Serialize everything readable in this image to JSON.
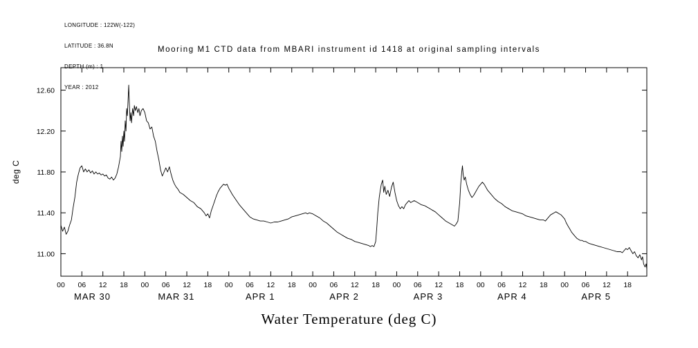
{
  "meta": {
    "lines": [
      "LONGITUDE : 122W(-122)",
      "LATITUDE : 36.8N",
      "DEPTH (m) : 1",
      "YEAR : 2012"
    ]
  },
  "title": "Mooring M1 CTD data from MBARI instrument id 1418 at original sampling intervals",
  "chart_data": {
    "type": "line",
    "title": "Mooring M1 CTD data from MBARI instrument id 1418 at original sampling intervals",
    "xlabel": "Water Temperature (deg C)",
    "ylabel": "deg C",
    "ylim": [
      10.78,
      12.82
    ],
    "xlim_hours": [
      0,
      167.5
    ],
    "yticks": [
      11.0,
      11.4,
      11.8,
      12.2,
      12.6
    ],
    "ytick_labels": [
      "11.00",
      "11.40",
      "11.80",
      "12.20",
      "12.60"
    ],
    "hour_tick_interval": 6,
    "hour_tick_labels": [
      "00",
      "06",
      "12",
      "18"
    ],
    "day_labels": [
      "MAR 30",
      "MAR 31",
      "APR 1",
      "APR 2",
      "APR 3",
      "APR 4",
      "APR 5"
    ],
    "grid": false,
    "legend": "none",
    "line_color": "#000000",
    "series_name": "water-temperature",
    "x_hours": [
      0,
      0.5,
      1,
      1.5,
      2,
      2.5,
      3,
      3.5,
      4,
      4.5,
      5,
      5.5,
      6,
      6.5,
      7,
      7.5,
      8,
      8.5,
      9,
      9.5,
      10,
      10.5,
      11,
      11.5,
      12,
      12.5,
      13,
      13.5,
      14,
      14.5,
      15,
      15.5,
      16,
      16.5,
      17,
      17.2,
      17.4,
      17.6,
      17.8,
      18,
      18.2,
      18.4,
      18.6,
      18.8,
      19,
      19.2,
      19.4,
      19.6,
      19.8,
      20,
      20.2,
      20.5,
      20.8,
      21,
      21.3,
      21.6,
      22,
      22.3,
      22.6,
      23,
      23.5,
      24,
      24.5,
      25,
      25.5,
      26,
      26.5,
      27,
      27.5,
      28,
      28.5,
      29,
      29.5,
      30,
      30.5,
      31,
      31.5,
      32,
      32.5,
      33,
      33.5,
      34,
      35,
      36,
      37,
      38,
      39,
      40,
      41,
      41.5,
      42,
      42.5,
      43,
      43.5,
      44,
      44.5,
      45,
      45.5,
      46,
      46.5,
      47,
      47.5,
      48,
      48.5,
      49,
      50,
      51,
      52,
      53,
      54,
      55,
      56,
      57,
      58,
      59,
      60,
      61,
      62,
      63,
      64,
      65,
      66,
      67,
      68,
      69,
      70,
      70.5,
      71,
      72,
      73,
      74,
      75,
      76,
      77,
      78,
      79,
      80,
      81,
      82,
      83,
      84,
      85,
      86,
      87,
      88,
      88.5,
      89,
      89.5,
      90,
      90.3,
      90.6,
      91,
      91.3,
      91.6,
      92,
      92.3,
      92.6,
      93,
      93.5,
      94,
      94.5,
      95,
      95.5,
      96,
      96.5,
      97,
      97.5,
      98,
      98.5,
      99,
      99.5,
      100,
      101,
      102,
      103,
      104,
      105,
      106,
      107,
      108,
      109,
      110,
      111,
      112,
      112.5,
      113,
      113.5,
      114,
      114.3,
      114.6,
      114.8,
      115,
      115.3,
      115.6,
      116,
      116.5,
      117,
      117.5,
      118,
      118.5,
      119,
      119.5,
      120,
      120.5,
      121,
      121.5,
      122,
      123,
      124,
      125,
      126,
      127,
      128,
      129,
      130,
      131,
      132,
      133,
      134,
      135,
      136,
      137,
      138,
      138.5,
      139,
      139.5,
      140,
      140.5,
      141,
      141.5,
      142,
      142.5,
      143,
      143.5,
      144,
      144.5,
      145,
      145.5,
      146,
      146.5,
      147,
      147.5,
      148,
      148.5,
      149,
      149.5,
      150,
      150.5,
      151,
      152,
      153,
      154,
      155,
      156,
      157,
      158,
      159,
      160,
      160.5,
      161,
      161.5,
      162,
      162.5,
      163,
      163.5,
      164,
      164.5,
      165,
      165.5,
      166,
      166.3,
      166.6,
      167,
      167.3,
      167.5
    ],
    "y_degC": [
      11.28,
      11.22,
      11.26,
      11.19,
      11.22,
      11.28,
      11.33,
      11.45,
      11.55,
      11.7,
      11.78,
      11.84,
      11.86,
      11.8,
      11.83,
      11.8,
      11.82,
      11.79,
      11.81,
      11.78,
      11.8,
      11.78,
      11.79,
      11.77,
      11.78,
      11.76,
      11.77,
      11.74,
      11.73,
      11.75,
      11.72,
      11.74,
      11.78,
      11.85,
      11.95,
      12.1,
      12.0,
      12.15,
      12.05,
      12.2,
      12.1,
      12.3,
      12.2,
      12.42,
      12.35,
      12.5,
      12.65,
      12.45,
      12.3,
      12.38,
      12.28,
      12.42,
      12.35,
      12.45,
      12.4,
      12.44,
      12.38,
      12.42,
      12.35,
      12.4,
      12.42,
      12.38,
      12.3,
      12.28,
      12.22,
      12.24,
      12.15,
      12.1,
      12.0,
      11.92,
      11.82,
      11.76,
      11.8,
      11.84,
      11.8,
      11.85,
      11.78,
      11.72,
      11.68,
      11.65,
      11.63,
      11.6,
      11.58,
      11.55,
      11.52,
      11.5,
      11.46,
      11.44,
      11.4,
      11.37,
      11.39,
      11.35,
      11.42,
      11.47,
      11.52,
      11.57,
      11.61,
      11.64,
      11.66,
      11.68,
      11.67,
      11.68,
      11.64,
      11.61,
      11.58,
      11.53,
      11.48,
      11.44,
      11.4,
      11.36,
      11.34,
      11.33,
      11.32,
      11.32,
      11.31,
      11.3,
      11.31,
      11.31,
      11.32,
      11.33,
      11.34,
      11.36,
      11.37,
      11.38,
      11.39,
      11.4,
      11.39,
      11.4,
      11.39,
      11.37,
      11.35,
      11.32,
      11.3,
      11.27,
      11.24,
      11.21,
      11.19,
      11.17,
      11.15,
      11.14,
      11.12,
      11.11,
      11.1,
      11.09,
      11.08,
      11.07,
      11.08,
      11.07,
      11.12,
      11.25,
      11.4,
      11.55,
      11.62,
      11.68,
      11.72,
      11.6,
      11.66,
      11.58,
      11.62,
      11.56,
      11.65,
      11.7,
      11.6,
      11.52,
      11.47,
      11.44,
      11.46,
      11.44,
      11.48,
      11.5,
      11.52,
      11.5,
      11.52,
      11.5,
      11.48,
      11.47,
      11.45,
      11.43,
      11.41,
      11.38,
      11.35,
      11.32,
      11.3,
      11.28,
      11.27,
      11.29,
      11.32,
      11.5,
      11.68,
      11.8,
      11.86,
      11.78,
      11.72,
      11.75,
      11.68,
      11.62,
      11.58,
      11.55,
      11.57,
      11.6,
      11.63,
      11.66,
      11.68,
      11.7,
      11.68,
      11.65,
      11.62,
      11.58,
      11.54,
      11.51,
      11.49,
      11.46,
      11.44,
      11.42,
      11.41,
      11.4,
      11.39,
      11.37,
      11.36,
      11.35,
      11.34,
      11.33,
      11.33,
      11.32,
      11.34,
      11.36,
      11.38,
      11.39,
      11.4,
      11.41,
      11.4,
      11.39,
      11.38,
      11.36,
      11.34,
      11.3,
      11.27,
      11.24,
      11.21,
      11.19,
      11.17,
      11.15,
      11.14,
      11.13,
      11.13,
      11.12,
      11.12,
      11.11,
      11.1,
      11.09,
      11.08,
      11.07,
      11.06,
      11.05,
      11.04,
      11.03,
      11.02,
      11.02,
      11.01,
      11.03,
      11.05,
      11.04,
      11.06,
      11.03,
      11.0,
      11.02,
      10.98,
      10.96,
      10.99,
      10.94,
      10.97,
      10.9,
      10.87,
      10.9,
      10.85
    ]
  }
}
